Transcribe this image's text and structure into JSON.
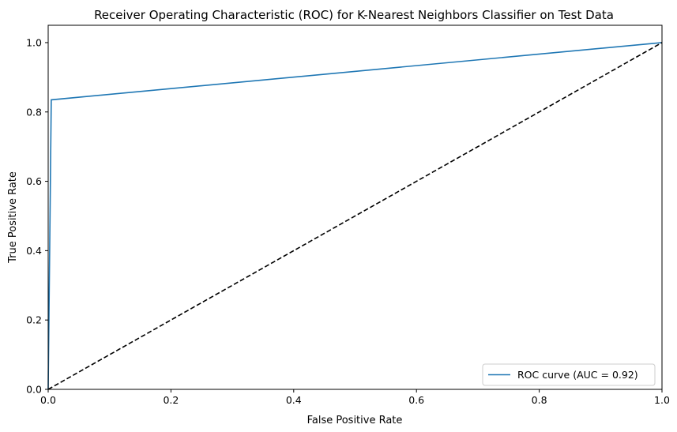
{
  "chart_data": {
    "type": "line",
    "title": "Receiver Operating Characteristic (ROC) for K-Nearest Neighbors Classifier on Test Data",
    "xlabel": "False Positive Rate",
    "ylabel": "True Positive Rate",
    "xlim": [
      0.0,
      1.0
    ],
    "ylim": [
      0.0,
      1.05
    ],
    "x_ticks": [
      0.0,
      0.2,
      0.4,
      0.6,
      0.8,
      1.0
    ],
    "x_tick_labels": [
      "0.0",
      "0.2",
      "0.4",
      "0.6",
      "0.8",
      "1.0"
    ],
    "y_ticks": [
      0.0,
      0.2,
      0.4,
      0.6,
      0.8,
      1.0
    ],
    "y_tick_labels": [
      "0.0",
      "0.2",
      "0.4",
      "0.6",
      "0.8",
      "1.0"
    ],
    "grid": false,
    "legend_position": "lower-right",
    "series": [
      {
        "name": "ROC curve (AUC = 0.92)",
        "color": "#1f77b4",
        "style": "solid",
        "x": [
          0.0,
          0.005,
          1.0
        ],
        "y": [
          0.0,
          0.835,
          1.0
        ]
      },
      {
        "color": "#000000",
        "style": "dashed",
        "x": [
          0.0,
          1.0
        ],
        "y": [
          0.0,
          1.0
        ]
      }
    ]
  }
}
